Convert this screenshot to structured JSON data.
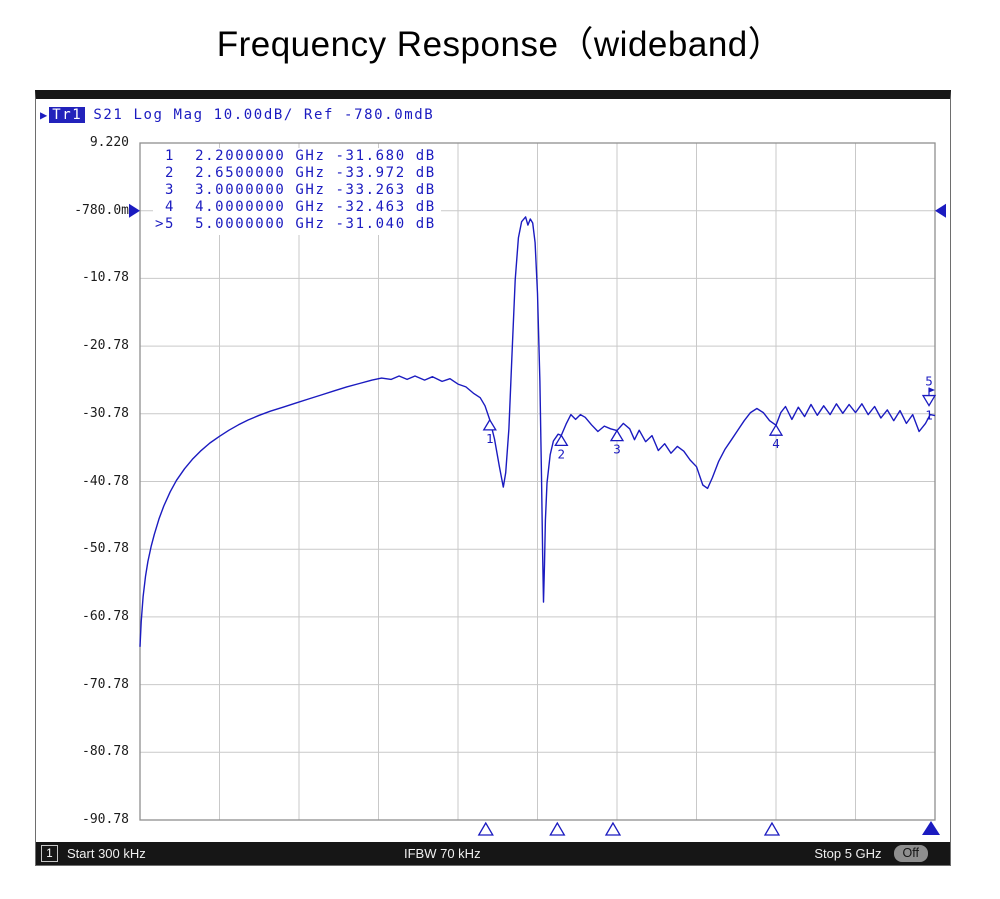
{
  "page": {
    "title": "Frequency Response（wideband）"
  },
  "instrument": {
    "header": {
      "cursor": "▶",
      "trace_label": "Tr1",
      "text": "S21 Log Mag 10.00dB/ Ref -780.0mdB"
    },
    "status_bar": {
      "channel": "1",
      "start": "Start 300 kHz",
      "ifbw": "IFBW 70 kHz",
      "stop": "Stop 5 GHz",
      "off_button": "Off"
    }
  },
  "chart_data": {
    "type": "line",
    "title": "Frequency Response（wideband）",
    "trace_name": "Tr1 S21 Log Mag",
    "x_unit": "GHz",
    "x_range_ghz": [
      0.0003,
      5
    ],
    "x_start_label": "Start 300 kHz",
    "x_stop_label": "Stop 5 GHz",
    "y_unit": "dB",
    "scale_db_per_div": 10,
    "ref_level_db": -0.78,
    "y_top_db": 9.22,
    "y_bottom_db": -90.78,
    "divisions_x": 10,
    "divisions_y": 10,
    "grid": true,
    "legend_position": "none",
    "y_tick_labels": [
      "9.220",
      "-780.0m",
      "-10.78",
      "-20.78",
      "-30.78",
      "-40.78",
      "-50.78",
      "-60.78",
      "-70.78",
      "-80.78",
      "-90.78"
    ],
    "trace_color": "#1b1bc0",
    "freq_unit": "GHz",
    "value_unit": "dB",
    "trace_end_label": "1",
    "markers": [
      {
        "n": "1",
        "freq": "2.2000000",
        "value": "-31.680",
        "active": false
      },
      {
        "n": "2",
        "freq": "2.6500000",
        "value": "-33.972",
        "active": false
      },
      {
        "n": "3",
        "freq": "3.0000000",
        "value": "-33.263",
        "active": false
      },
      {
        "n": "4",
        "freq": "4.0000000",
        "value": "-32.463",
        "active": false
      },
      {
        "n": "5",
        "freq": "5.0000000",
        "value": "-31.040",
        "active": true
      }
    ],
    "series": [
      {
        "name": "Tr1 S21",
        "points": [
          [
            0.0003,
            -65.2
          ],
          [
            0.008,
            -61.5
          ],
          [
            0.02,
            -57.8
          ],
          [
            0.035,
            -54.8
          ],
          [
            0.05,
            -52.6
          ],
          [
            0.07,
            -50.4
          ],
          [
            0.09,
            -48.6
          ],
          [
            0.12,
            -46.3
          ],
          [
            0.15,
            -44.4
          ],
          [
            0.19,
            -42.3
          ],
          [
            0.23,
            -40.6
          ],
          [
            0.28,
            -38.9
          ],
          [
            0.33,
            -37.5
          ],
          [
            0.38,
            -36.3
          ],
          [
            0.44,
            -35.1
          ],
          [
            0.5,
            -34.1
          ],
          [
            0.56,
            -33.2
          ],
          [
            0.62,
            -32.4
          ],
          [
            0.68,
            -31.7
          ],
          [
            0.75,
            -31.0
          ],
          [
            0.82,
            -30.4
          ],
          [
            0.9,
            -29.8
          ],
          [
            0.98,
            -29.2
          ],
          [
            1.06,
            -28.6
          ],
          [
            1.14,
            -28.0
          ],
          [
            1.22,
            -27.4
          ],
          [
            1.3,
            -26.8
          ],
          [
            1.38,
            -26.3
          ],
          [
            1.46,
            -25.8
          ],
          [
            1.52,
            -25.5
          ],
          [
            1.58,
            -25.7
          ],
          [
            1.63,
            -25.2
          ],
          [
            1.68,
            -25.7
          ],
          [
            1.73,
            -25.2
          ],
          [
            1.79,
            -25.8
          ],
          [
            1.84,
            -25.3
          ],
          [
            1.9,
            -26.0
          ],
          [
            1.95,
            -25.6
          ],
          [
            2.0,
            -26.4
          ],
          [
            2.05,
            -26.8
          ],
          [
            2.1,
            -27.8
          ],
          [
            2.14,
            -28.4
          ],
          [
            2.17,
            -29.6
          ],
          [
            2.2,
            -31.68
          ],
          [
            2.23,
            -34.5
          ],
          [
            2.26,
            -38.5
          ],
          [
            2.285,
            -41.6
          ],
          [
            2.3,
            -39.5
          ],
          [
            2.32,
            -33.0
          ],
          [
            2.34,
            -22.0
          ],
          [
            2.36,
            -11.0
          ],
          [
            2.38,
            -4.8
          ],
          [
            2.4,
            -2.4
          ],
          [
            2.425,
            -1.7
          ],
          [
            2.44,
            -2.9
          ],
          [
            2.455,
            -2.0
          ],
          [
            2.47,
            -2.6
          ],
          [
            2.485,
            -5.5
          ],
          [
            2.5,
            -13.0
          ],
          [
            2.515,
            -26.0
          ],
          [
            2.525,
            -40.0
          ],
          [
            2.533,
            -52.0
          ],
          [
            2.538,
            -58.6
          ],
          [
            2.544,
            -53.0
          ],
          [
            2.55,
            -46.5
          ],
          [
            2.56,
            -41.0
          ],
          [
            2.58,
            -36.8
          ],
          [
            2.6,
            -34.8
          ],
          [
            2.63,
            -33.8
          ],
          [
            2.65,
            -33.97
          ],
          [
            2.68,
            -32.3
          ],
          [
            2.71,
            -30.9
          ],
          [
            2.74,
            -31.6
          ],
          [
            2.77,
            -30.9
          ],
          [
            2.8,
            -31.3
          ],
          [
            2.84,
            -32.4
          ],
          [
            2.88,
            -33.4
          ],
          [
            2.92,
            -32.6
          ],
          [
            2.96,
            -33.0
          ],
          [
            3.0,
            -33.26
          ],
          [
            3.04,
            -32.2
          ],
          [
            3.08,
            -33.0
          ],
          [
            3.11,
            -34.6
          ],
          [
            3.14,
            -33.2
          ],
          [
            3.18,
            -34.9
          ],
          [
            3.22,
            -34.0
          ],
          [
            3.26,
            -36.2
          ],
          [
            3.3,
            -35.2
          ],
          [
            3.34,
            -36.6
          ],
          [
            3.38,
            -35.6
          ],
          [
            3.42,
            -36.3
          ],
          [
            3.46,
            -37.6
          ],
          [
            3.5,
            -38.6
          ],
          [
            3.54,
            -41.3
          ],
          [
            3.57,
            -41.8
          ],
          [
            3.6,
            -40.2
          ],
          [
            3.64,
            -37.8
          ],
          [
            3.68,
            -36.0
          ],
          [
            3.72,
            -34.6
          ],
          [
            3.76,
            -33.2
          ],
          [
            3.8,
            -31.8
          ],
          [
            3.84,
            -30.6
          ],
          [
            3.88,
            -30.0
          ],
          [
            3.92,
            -30.6
          ],
          [
            3.96,
            -31.8
          ],
          [
            4.0,
            -32.46
          ],
          [
            4.03,
            -30.6
          ],
          [
            4.06,
            -29.7
          ],
          [
            4.1,
            -31.6
          ],
          [
            4.14,
            -29.8
          ],
          [
            4.18,
            -31.2
          ],
          [
            4.22,
            -29.4
          ],
          [
            4.26,
            -31.0
          ],
          [
            4.3,
            -29.6
          ],
          [
            4.34,
            -30.9
          ],
          [
            4.38,
            -29.3
          ],
          [
            4.42,
            -30.7
          ],
          [
            4.46,
            -29.4
          ],
          [
            4.5,
            -30.6
          ],
          [
            4.54,
            -29.3
          ],
          [
            4.58,
            -30.9
          ],
          [
            4.62,
            -29.7
          ],
          [
            4.66,
            -31.4
          ],
          [
            4.7,
            -30.2
          ],
          [
            4.74,
            -31.8
          ],
          [
            4.78,
            -30.3
          ],
          [
            4.82,
            -32.2
          ],
          [
            4.86,
            -30.9
          ],
          [
            4.9,
            -33.4
          ],
          [
            4.94,
            -32.2
          ],
          [
            4.97,
            -30.9
          ],
          [
            5.0,
            -31.04
          ]
        ]
      }
    ]
  }
}
